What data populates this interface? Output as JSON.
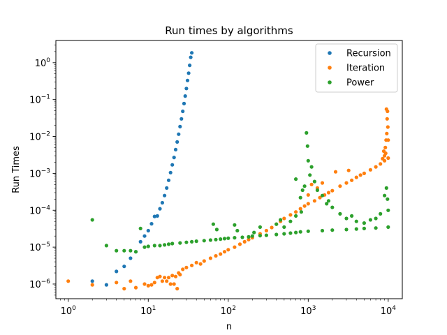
{
  "chart_data": {
    "type": "scatter",
    "title": "Run times by algorithms",
    "xlabel": "n",
    "ylabel": "Run Times",
    "xscale": "log",
    "yscale": "log",
    "xlim": [
      0.7,
      15000
    ],
    "ylim": [
      4e-07,
      4
    ],
    "x_ticks": [
      {
        "value": 1,
        "base": "10",
        "exp": "0"
      },
      {
        "value": 10,
        "base": "10",
        "exp": "1"
      },
      {
        "value": 100,
        "base": "10",
        "exp": "2"
      },
      {
        "value": 1000,
        "base": "10",
        "exp": "3"
      },
      {
        "value": 10000,
        "base": "10",
        "exp": "4"
      }
    ],
    "y_ticks": [
      {
        "value": 1e-06,
        "base": "10",
        "exp": "−6"
      },
      {
        "value": 1e-05,
        "base": "10",
        "exp": "−5"
      },
      {
        "value": 0.0001,
        "base": "10",
        "exp": "−4"
      },
      {
        "value": 0.001,
        "base": "10",
        "exp": "−3"
      },
      {
        "value": 0.01,
        "base": "10",
        "exp": "−2"
      },
      {
        "value": 0.1,
        "base": "10",
        "exp": "−1"
      },
      {
        "value": 1,
        "base": "10",
        "exp": "0"
      }
    ],
    "legend_position": "top-right",
    "grid": false,
    "series": [
      {
        "name": "Recursion",
        "color": "#1f77b4",
        "points": [
          [
            2,
            1.2e-06
          ],
          [
            3,
            9.5e-07
          ],
          [
            4,
            2.2e-06
          ],
          [
            5,
            3e-06
          ],
          [
            6,
            5e-06
          ],
          [
            7,
            7.5e-06
          ],
          [
            8,
            1.4e-05
          ],
          [
            9,
            2e-05
          ],
          [
            10,
            2.8e-05
          ],
          [
            11,
            4.3e-05
          ],
          [
            12,
            6.8e-05
          ],
          [
            13,
            7e-05
          ],
          [
            14,
            0.00011
          ],
          [
            15,
            0.00016
          ],
          [
            16,
            0.00025
          ],
          [
            17,
            0.0004
          ],
          [
            18,
            0.00065
          ],
          [
            19,
            0.00105
          ],
          [
            20,
            0.0017
          ],
          [
            21,
            0.0027
          ],
          [
            22,
            0.0044
          ],
          [
            23,
            0.0071
          ],
          [
            24,
            0.0115
          ],
          [
            25,
            0.0185
          ],
          [
            26,
            0.03
          ],
          [
            27,
            0.048
          ],
          [
            28,
            0.078
          ],
          [
            29,
            0.125
          ],
          [
            30,
            0.2
          ],
          [
            31,
            0.33
          ],
          [
            32,
            0.52
          ],
          [
            33,
            0.85
          ],
          [
            34,
            1.4
          ],
          [
            35,
            1.85
          ]
        ]
      },
      {
        "name": "Iteration",
        "color": "#ff7f0e",
        "points": [
          [
            1,
            1.2e-06
          ],
          [
            2,
            9.5e-07
          ],
          [
            4,
            1.1e-06
          ],
          [
            5,
            7.5e-07
          ],
          [
            6,
            1.2e-06
          ],
          [
            7,
            8e-07
          ],
          [
            9,
            1e-06
          ],
          [
            10,
            9e-07
          ],
          [
            11,
            9.5e-07
          ],
          [
            12,
            1.1e-06
          ],
          [
            13,
            1.5e-06
          ],
          [
            14,
            1.6e-06
          ],
          [
            15,
            1.2e-06
          ],
          [
            16,
            1.5e-06
          ],
          [
            17,
            1.2e-06
          ],
          [
            18,
            1.5e-06
          ],
          [
            19,
            1e-06
          ],
          [
            20,
            1.7e-06
          ],
          [
            21,
            1e-06
          ],
          [
            22,
            1.6e-06
          ],
          [
            23,
            7.5e-07
          ],
          [
            24,
            2e-06
          ],
          [
            25,
            1.8e-06
          ],
          [
            27,
            2.5e-06
          ],
          [
            30,
            2.8e-06
          ],
          [
            35,
            3.2e-06
          ],
          [
            40,
            3.8e-06
          ],
          [
            45,
            3.5e-06
          ],
          [
            50,
            4.2e-06
          ],
          [
            60,
            5e-06
          ],
          [
            70,
            5.8e-06
          ],
          [
            80,
            6.5e-06
          ],
          [
            90,
            7.5e-06
          ],
          [
            100,
            8.5e-06
          ],
          [
            120,
            1e-05
          ],
          [
            140,
            1.2e-05
          ],
          [
            160,
            1.4e-05
          ],
          [
            180,
            1.6e-05
          ],
          [
            200,
            1.8e-05
          ],
          [
            250,
            2.3e-05
          ],
          [
            300,
            2.8e-05
          ],
          [
            350,
            3.4e-05
          ],
          [
            400,
            4.2e-05
          ],
          [
            450,
            5e-05
          ],
          [
            500,
            6e-05
          ],
          [
            600,
            7.5e-05
          ],
          [
            700,
            9e-05
          ],
          [
            800,
            0.00011
          ],
          [
            900,
            0.00013
          ],
          [
            1000,
            0.00015
          ],
          [
            1200,
            0.00018
          ],
          [
            1400,
            0.00022
          ],
          [
            1600,
            0.00026
          ],
          [
            1800,
            0.0003
          ],
          [
            2000,
            0.00034
          ],
          [
            2500,
            0.00045
          ],
          [
            3000,
            0.00055
          ],
          [
            3500,
            0.00065
          ],
          [
            4000,
            0.00078
          ],
          [
            4500,
            0.0009
          ],
          [
            5000,
            0.001
          ],
          [
            6000,
            0.00125
          ],
          [
            7000,
            0.0015
          ],
          [
            8000,
            0.0018
          ],
          [
            9000,
            0.0022
          ],
          [
            10000,
            0.0026
          ],
          [
            1000,
            0.00026
          ],
          [
            1100,
            0.0005
          ],
          [
            1300,
            0.0004
          ],
          [
            1500,
            0.00055
          ],
          [
            2200,
            0.0011
          ],
          [
            3200,
            0.0012
          ],
          [
            9500,
            0.055
          ],
          [
            9800,
            0.048
          ],
          [
            9700,
            0.03
          ],
          [
            9900,
            0.018
          ],
          [
            9600,
            0.012
          ],
          [
            9400,
            0.008
          ],
          [
            9200,
            0.005
          ],
          [
            9300,
            0.0035
          ],
          [
            9000,
            0.003
          ],
          [
            8500,
            0.0025
          ],
          [
            8800,
            0.004
          ],
          [
            10000,
            0.008
          ]
        ]
      },
      {
        "name": "Power",
        "color": "#2ca02c",
        "points": [
          [
            2,
            5.5e-05
          ],
          [
            3,
            1.1e-05
          ],
          [
            4,
            8e-06
          ],
          [
            5,
            8e-06
          ],
          [
            6,
            8e-06
          ],
          [
            7,
            7.5e-06
          ],
          [
            8,
            3.2e-05
          ],
          [
            9,
            1e-05
          ],
          [
            10,
            1.05e-05
          ],
          [
            12,
            1.1e-05
          ],
          [
            14,
            1.1e-05
          ],
          [
            16,
            1.15e-05
          ],
          [
            18,
            1.2e-05
          ],
          [
            20,
            1.25e-05
          ],
          [
            25,
            1.3e-05
          ],
          [
            30,
            1.35e-05
          ],
          [
            35,
            1.4e-05
          ],
          [
            40,
            1.45e-05
          ],
          [
            50,
            1.5e-05
          ],
          [
            60,
            1.55e-05
          ],
          [
            70,
            1.6e-05
          ],
          [
            80,
            1.65e-05
          ],
          [
            90,
            1.7e-05
          ],
          [
            100,
            1.75e-05
          ],
          [
            120,
            1.8e-05
          ],
          [
            150,
            1.85e-05
          ],
          [
            180,
            1.9e-05
          ],
          [
            200,
            2e-05
          ],
          [
            250,
            2.05e-05
          ],
          [
            300,
            2.1e-05
          ],
          [
            400,
            2.2e-05
          ],
          [
            500,
            2.3e-05
          ],
          [
            600,
            2.4e-05
          ],
          [
            700,
            2.5e-05
          ],
          [
            800,
            2.6e-05
          ],
          [
            1000,
            2.7e-05
          ],
          [
            1500,
            2.8e-05
          ],
          [
            2000,
            2.9e-05
          ],
          [
            3000,
            3e-05
          ],
          [
            4000,
            3.1e-05
          ],
          [
            5000,
            3.2e-05
          ],
          [
            7000,
            3.3e-05
          ],
          [
            10000,
            3.5e-05
          ],
          [
            72,
            3e-05
          ],
          [
            65,
            4.2e-05
          ],
          [
            130,
            2.8e-05
          ],
          [
            210,
            2.5e-05
          ],
          [
            450,
            5.5e-05
          ],
          [
            500,
            3.5e-05
          ],
          [
            600,
            5e-05
          ],
          [
            700,
            7e-05
          ],
          [
            800,
            0.00022
          ],
          [
            850,
            0.00035
          ],
          [
            900,
            0.00045
          ],
          [
            950,
            0.0125
          ],
          [
            980,
            0.0055
          ],
          [
            1000,
            0.0022
          ],
          [
            1050,
            0.0009
          ],
          [
            1100,
            0.0015
          ],
          [
            1200,
            0.0006
          ],
          [
            1300,
            0.00035
          ],
          [
            1500,
            0.00025
          ],
          [
            1700,
            0.00015
          ],
          [
            2000,
            0.00012
          ],
          [
            2500,
            8e-05
          ],
          [
            3000,
            6e-05
          ],
          [
            4000,
            5e-05
          ],
          [
            5000,
            4.5e-05
          ],
          [
            6000,
            5.5e-05
          ],
          [
            7000,
            6e-05
          ],
          [
            8000,
            8e-05
          ],
          [
            9000,
            0.00025
          ],
          [
            9500,
            0.0004
          ],
          [
            9800,
            0.0002
          ],
          [
            10000,
            0.0001
          ],
          [
            700,
            0.0007
          ],
          [
            820,
            9e-05
          ],
          [
            1800,
            0.00018
          ],
          [
            3500,
            7e-05
          ],
          [
            120,
            4e-05
          ],
          [
            250,
            3.5e-05
          ],
          [
            400,
            4.2e-05
          ]
        ]
      }
    ]
  }
}
